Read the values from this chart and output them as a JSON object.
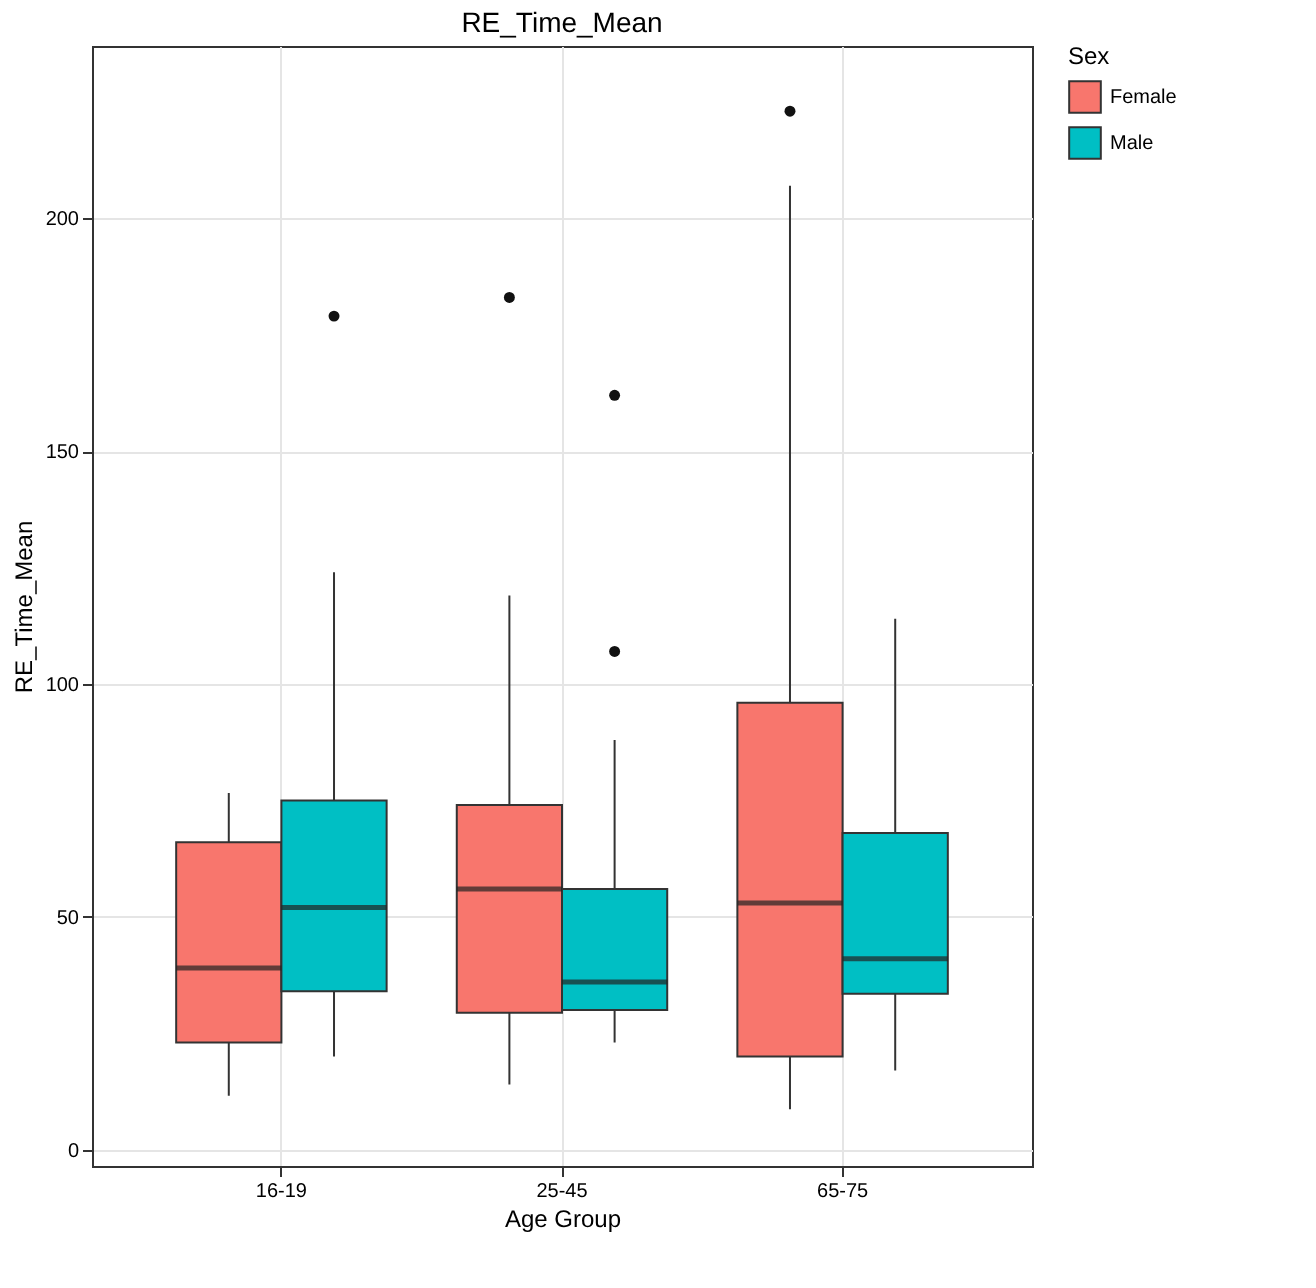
{
  "chart_data": {
    "type": "box",
    "title": "RE_Time_Mean",
    "xlabel": "Age Group",
    "ylabel": "RE_Time_Mean",
    "legend_title": "Sex",
    "legend": "right",
    "grid": true,
    "categories": [
      "16-19",
      "25-45",
      "65-75"
    ],
    "ylim": [
      -3.5,
      237
    ],
    "yticks": [
      0,
      50,
      100,
      150,
      200
    ],
    "series": [
      {
        "name": "Female",
        "color": "#f8766d",
        "boxes": [
          {
            "low": 11.6,
            "q1": 23,
            "median": 39,
            "q3": 66,
            "high": 76.6
          },
          {
            "low": 14,
            "q1": 29.4,
            "median": 56,
            "q3": 74,
            "high": 119,
            "outliers": [
              183
            ]
          },
          {
            "low": 8.7,
            "q1": 20,
            "median": 53,
            "q3": 96,
            "high": 207,
            "outliers": [
              223
            ]
          }
        ]
      },
      {
        "name": "Male",
        "color": "#00bfc4",
        "boxes": [
          {
            "low": 20,
            "q1": 34,
            "median": 52,
            "q3": 75,
            "high": 124,
            "outliers": [
              179
            ]
          },
          {
            "low": 23,
            "q1": 30,
            "median": 36,
            "q3": 56,
            "high": 88,
            "outliers": [
              162,
              107
            ]
          },
          {
            "low": 17,
            "q1": 33.5,
            "median": 41,
            "q3": 68,
            "high": 114
          }
        ]
      }
    ]
  }
}
